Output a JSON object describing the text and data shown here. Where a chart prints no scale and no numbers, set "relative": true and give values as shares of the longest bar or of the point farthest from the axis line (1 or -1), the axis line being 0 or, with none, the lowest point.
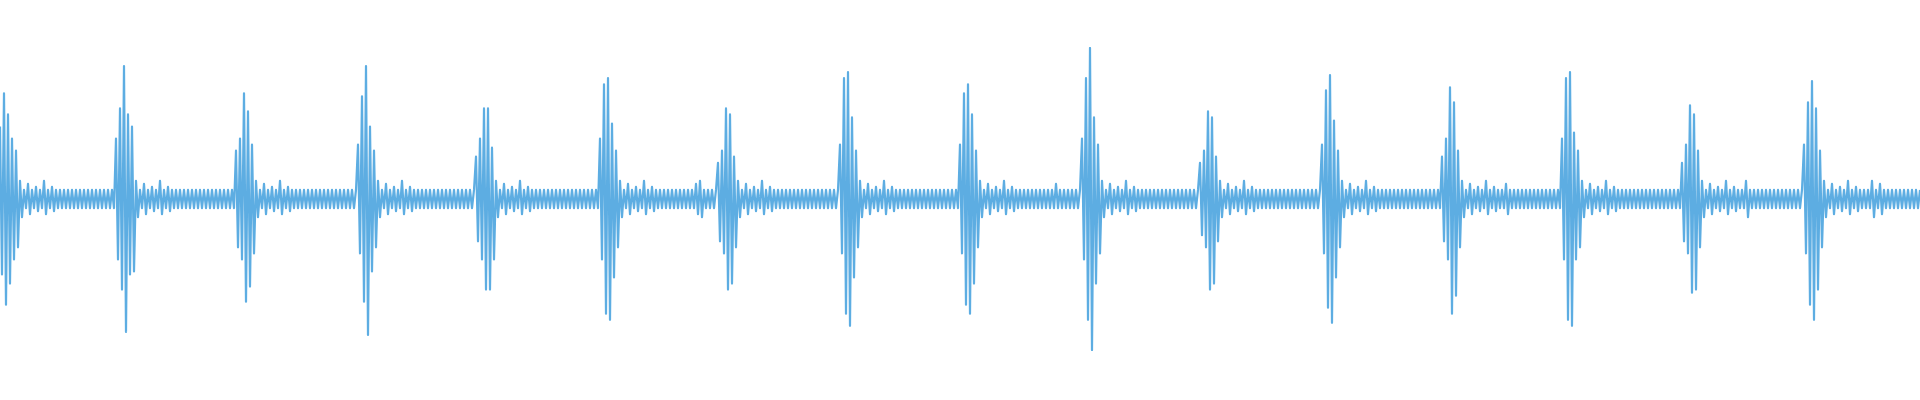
{
  "chart_data": {
    "type": "line",
    "relative": true,
    "color": "#5dade2",
    "categories": [
      null,
      null,
      null,
      null,
      null,
      null,
      null,
      null,
      null,
      null,
      null,
      null,
      null,
      null,
      null,
      null,
      null,
      null,
      null,
      null,
      null,
      null,
      null,
      null,
      null,
      null,
      null,
      null,
      null,
      null,
      null,
      null,
      null,
      null,
      null,
      null,
      null,
      null,
      null,
      null,
      null,
      null,
      null,
      null,
      null,
      null,
      null,
      null,
      null,
      null,
      null,
      null,
      null,
      null,
      null,
      null,
      null,
      null,
      null,
      null,
      null,
      null,
      null,
      null,
      null,
      null,
      null,
      null,
      null,
      null,
      null,
      null,
      null,
      null,
      null,
      null,
      null,
      null,
      null,
      null,
      null,
      null,
      null,
      null,
      null,
      null,
      null,
      null,
      null,
      null,
      null,
      null,
      null,
      null,
      null,
      null,
      null,
      null,
      null,
      null,
      null,
      null,
      null,
      null,
      null,
      null,
      null,
      null,
      null,
      null,
      null,
      null,
      null,
      null,
      null,
      null,
      null,
      null,
      null,
      null,
      null,
      null,
      null,
      null,
      null,
      null,
      null,
      null,
      null,
      null,
      null,
      null,
      null,
      null,
      null,
      null,
      null,
      null,
      null,
      null,
      null,
      null,
      null,
      null,
      null,
      null,
      null,
      null,
      null,
      null,
      null,
      null,
      null,
      null,
      null,
      null,
      null,
      null,
      null,
      null,
      null,
      null,
      null,
      null,
      null,
      null,
      null,
      null,
      null,
      null,
      null,
      null,
      null,
      null,
      null,
      null,
      null,
      null,
      null,
      null,
      null,
      null,
      null,
      null,
      null,
      null,
      null,
      null,
      null,
      null,
      null,
      null,
      null,
      null,
      null,
      null,
      null,
      null,
      null,
      null,
      null,
      null,
      null,
      null,
      null,
      null,
      null,
      null,
      null,
      null,
      null,
      null,
      null,
      null,
      null,
      null,
      null,
      null,
      null,
      null,
      null,
      null,
      null,
      null,
      null,
      null,
      null,
      null,
      null,
      null,
      null,
      null,
      null,
      null,
      null,
      null,
      null,
      null,
      null,
      null,
      null,
      null,
      null,
      null,
      null,
      null,
      null,
      null,
      null,
      null,
      null,
      null,
      null,
      null,
      null,
      null,
      null,
      null,
      null,
      null,
      null,
      null,
      null,
      null,
      null,
      null,
      null,
      null,
      null,
      null,
      null,
      null,
      null,
      null,
      null,
      null,
      null,
      null,
      null,
      null,
      null,
      null,
      null,
      null,
      null,
      null,
      null,
      null,
      null,
      null,
      null,
      null,
      null,
      null,
      null,
      null,
      null,
      null,
      null,
      null,
      null,
      null,
      null,
      null,
      null,
      null,
      null,
      null,
      null,
      null,
      null,
      null,
      null,
      null,
      null,
      null,
      null,
      null,
      null,
      null,
      null,
      null,
      null,
      null,
      null,
      null,
      null,
      null,
      null,
      null,
      null,
      null,
      null,
      null,
      null,
      null,
      null,
      null,
      null,
      null,
      null,
      null,
      null,
      null,
      null,
      null,
      null,
      null,
      null,
      null,
      null,
      null,
      null,
      null,
      null,
      null,
      null,
      null,
      null,
      null,
      null,
      null,
      null,
      null,
      null,
      null,
      null,
      null,
      null,
      null,
      null,
      null,
      null,
      null,
      null,
      null,
      null,
      null,
      null,
      null,
      null,
      null,
      null,
      null,
      null,
      null,
      null,
      null,
      null,
      null,
      null,
      null,
      null,
      null,
      null,
      null,
      null,
      null,
      null,
      null,
      null,
      null,
      null,
      null,
      null,
      null,
      null,
      null,
      null,
      null,
      null,
      null,
      null,
      null,
      null,
      null,
      null,
      null,
      null,
      null,
      null,
      null,
      null,
      null,
      null,
      null,
      null,
      null,
      null,
      null,
      null,
      null,
      null,
      null,
      null,
      null,
      null,
      null,
      null,
      null,
      null,
      null,
      null,
      null,
      null,
      null,
      null,
      null,
      null,
      null,
      null,
      null,
      null,
      null,
      null,
      null,
      null,
      null,
      null,
      null,
      null,
      null,
      null,
      null,
      null,
      null,
      null,
      null,
      null,
      null,
      null,
      null,
      null,
      null,
      null,
      null,
      null,
      null,
      null,
      null,
      null,
      null,
      null,
      null,
      null,
      null,
      null,
      null,
      null,
      null,
      null,
      null,
      null,
      null,
      null,
      null,
      null,
      null,
      null,
      null,
      null,
      null,
      null,
      null,
      null,
      null,
      null,
      null,
      null,
      null,
      null,
      null,
      null,
      null,
      null,
      null,
      null,
      null,
      null,
      null,
      null,
      null,
      null,
      null,
      null,
      null,
      null,
      null,
      null,
      null,
      null,
      null,
      null,
      null,
      null,
      null,
      null,
      null,
      null,
      null,
      null,
      null,
      null,
      null,
      null,
      null,
      null,
      null,
      null,
      null,
      null,
      null,
      null,
      null,
      null,
      null,
      null,
      null,
      null,
      null,
      null,
      null,
      null,
      null,
      null,
      null,
      null,
      null,
      null,
      null,
      null,
      null,
      null,
      null,
      null,
      null,
      null,
      null,
      null,
      null,
      null,
      null,
      null,
      null,
      null,
      null,
      null,
      null,
      null,
      null,
      null,
      null,
      null,
      null,
      null,
      null,
      null,
      null,
      null,
      null,
      null,
      null,
      null,
      null,
      null,
      null,
      null,
      null,
      null,
      null,
      null,
      null,
      null,
      null,
      null,
      null,
      null,
      null,
      null,
      null,
      null,
      null,
      null,
      null,
      null,
      null,
      null,
      null,
      null,
      null,
      null,
      null,
      null,
      null,
      null,
      null,
      null,
      null,
      null,
      null,
      null,
      null,
      null,
      null,
      null,
      null,
      null,
      null,
      null,
      null,
      null,
      null,
      null,
      null,
      null,
      null,
      null,
      null,
      null,
      null,
      null,
      null,
      null,
      null,
      null,
      null,
      null,
      null,
      null,
      null,
      null,
      null,
      null,
      null,
      null,
      null,
      null,
      null,
      null,
      null,
      null,
      null,
      null,
      null,
      null,
      null,
      null,
      null,
      null,
      null,
      null,
      null,
      null,
      null,
      null,
      null,
      null,
      null,
      null,
      null,
      null,
      null,
      null,
      null,
      null,
      null,
      null,
      null,
      null,
      null,
      null,
      null,
      null,
      null,
      null,
      null,
      null,
      null,
      null,
      null,
      null,
      null,
      null,
      null,
      null,
      null,
      null,
      null,
      null,
      null,
      null,
      null,
      null,
      null,
      null,
      null,
      null,
      null,
      null,
      null,
      null,
      null,
      null,
      null,
      null,
      null,
      null,
      null,
      null,
      null,
      null,
      null,
      null,
      null,
      null,
      null,
      null,
      null,
      null,
      null,
      null,
      null,
      null,
      null,
      null,
      null,
      null,
      null,
      null,
      null,
      null,
      null,
      null,
      null,
      null,
      null,
      null,
      null,
      null,
      null,
      null,
      null,
      null,
      null,
      null,
      null,
      null,
      null,
      null,
      null,
      null,
      null,
      null,
      null,
      null,
      null,
      null,
      null,
      null,
      null,
      null,
      null,
      null,
      null,
      null,
      null,
      null,
      null,
      null,
      null,
      null,
      null,
      null,
      null,
      null,
      null,
      null,
      null,
      null,
      null,
      null,
      null,
      null,
      null,
      null,
      null,
      null,
      null,
      null,
      null,
      null,
      null,
      null,
      null,
      null,
      null,
      null,
      null,
      null,
      null,
      null,
      null,
      null,
      null,
      null,
      null,
      null,
      null,
      null,
      null,
      null,
      null,
      null,
      null,
      null,
      null,
      null,
      null,
      null,
      null,
      null,
      null,
      null,
      null,
      null,
      null,
      null,
      null,
      null,
      null,
      null,
      null,
      null,
      null,
      null,
      null,
      null,
      null,
      null,
      null,
      null,
      null,
      null,
      null,
      null,
      null,
      null,
      null,
      null,
      null,
      null,
      null,
      null,
      null,
      null,
      null,
      null,
      null,
      null,
      null,
      null,
      null,
      null,
      null,
      null,
      null,
      null,
      null,
      null,
      null,
      null,
      null,
      null,
      null,
      null,
      null,
      null,
      null,
      null,
      null,
      null,
      null,
      null,
      null,
      null,
      null,
      null,
      null,
      null,
      null,
      null,
      null,
      null,
      null,
      null,
      null,
      null,
      null,
      null,
      null,
      null,
      null,
      null,
      null,
      null,
      null,
      null,
      null,
      null,
      null,
      null,
      null,
      null,
      null,
      null,
      null,
      null,
      null,
      null,
      null,
      null
    ],
    "values": [
      0.74,
      0.25,
      0.85,
      0.15,
      0.78,
      0.22,
      0.7,
      0.3,
      0.66,
      0.34,
      0.56,
      0.44,
      0.53,
      0.47,
      0.55,
      0.45,
      0.53,
      0.47,
      0.54,
      0.46,
      0.53,
      0.47,
      0.56,
      0.45,
      0.53,
      0.47,
      0.54,
      0.46,
      0.53,
      0.47,
      0.53,
      0.47,
      0.53,
      0.47,
      0.53,
      0.47,
      0.53,
      0.47,
      0.53,
      0.47,
      0.53,
      0.47,
      0.53,
      0.47,
      0.53,
      0.47,
      0.53,
      0.47,
      0.53,
      0.47,
      0.53,
      0.47,
      0.53,
      0.47,
      0.53,
      0.47,
      0.53,
      0.47,
      0.7,
      0.3,
      0.8,
      0.2,
      0.94,
      0.06,
      0.78,
      0.25,
      0.74,
      0.26,
      0.56,
      0.44,
      0.53,
      0.47,
      0.55,
      0.45,
      0.53,
      0.47,
      0.54,
      0.46,
      0.53,
      0.47,
      0.56,
      0.45,
      0.53,
      0.47,
      0.54,
      0.46,
      0.53,
      0.47,
      0.53,
      0.47,
      0.53,
      0.47,
      0.53,
      0.47,
      0.53,
      0.47,
      0.53,
      0.47,
      0.53,
      0.47,
      0.53,
      0.47,
      0.53,
      0.47,
      0.53,
      0.47,
      0.53,
      0.47,
      0.53,
      0.47,
      0.53,
      0.47,
      0.53,
      0.47,
      0.53,
      0.47,
      0.53,
      0.47,
      0.66,
      0.34,
      0.7,
      0.3,
      0.85,
      0.16,
      0.79,
      0.21,
      0.68,
      0.32,
      0.56,
      0.44,
      0.53,
      0.47,
      0.55,
      0.45,
      0.53,
      0.47,
      0.54,
      0.46,
      0.53,
      0.47,
      0.56,
      0.45,
      0.53,
      0.47,
      0.54,
      0.46,
      0.53,
      0.47,
      0.53,
      0.47,
      0.53,
      0.47,
      0.53,
      0.47,
      0.53,
      0.47,
      0.53,
      0.47,
      0.53,
      0.47,
      0.53,
      0.47,
      0.53,
      0.47,
      0.53,
      0.47,
      0.53,
      0.47,
      0.53,
      0.47,
      0.53,
      0.47,
      0.53,
      0.47,
      0.53,
      0.47,
      0.53,
      0.47,
      0.53,
      0.68,
      0.32,
      0.84,
      0.16,
      0.94,
      0.05,
      0.74,
      0.26,
      0.66,
      0.34,
      0.56,
      0.44,
      0.53,
      0.47,
      0.55,
      0.45,
      0.53,
      0.47,
      0.54,
      0.46,
      0.53,
      0.47,
      0.56,
      0.45,
      0.53,
      0.47,
      0.54,
      0.46,
      0.53,
      0.47,
      0.53,
      0.47,
      0.53,
      0.47,
      0.53,
      0.47,
      0.53,
      0.47,
      0.53,
      0.47,
      0.53,
      0.47,
      0.53,
      0.47,
      0.53,
      0.47,
      0.53,
      0.47,
      0.53,
      0.47,
      0.53,
      0.47,
      0.53,
      0.47,
      0.53,
      0.47,
      0.53,
      0.47,
      0.53,
      0.64,
      0.36,
      0.7,
      0.3,
      0.8,
      0.2,
      0.8,
      0.2,
      0.67,
      0.3,
      0.56,
      0.44,
      0.53,
      0.47,
      0.55,
      0.45,
      0.53,
      0.47,
      0.54,
      0.46,
      0.53,
      0.47,
      0.56,
      0.45,
      0.53,
      0.47,
      0.54,
      0.46,
      0.53,
      0.47,
      0.53,
      0.47,
      0.53,
      0.47,
      0.53,
      0.47,
      0.53,
      0.47,
      0.53,
      0.47,
      0.53,
      0.47,
      0.53,
      0.47,
      0.53,
      0.47,
      0.53,
      0.47,
      0.53,
      0.47,
      0.53,
      0.47,
      0.53,
      0.47,
      0.53,
      0.47,
      0.53,
      0.47,
      0.53,
      0.47,
      0.53,
      0.47,
      0.7,
      0.3,
      0.88,
      0.12,
      0.9,
      0.1,
      0.75,
      0.24,
      0.66,
      0.34,
      0.56,
      0.44,
      0.53,
      0.47,
      0.55,
      0.45,
      0.53,
      0.47,
      0.54,
      0.46,
      0.53,
      0.47,
      0.56,
      0.45,
      0.53,
      0.47,
      0.54,
      0.46,
      0.53,
      0.47,
      0.53,
      0.47,
      0.53,
      0.47,
      0.53,
      0.47,
      0.53,
      0.47,
      0.53,
      0.47,
      0.53,
      0.47,
      0.53,
      0.47,
      0.53,
      0.47,
      0.53,
      0.47,
      0.55,
      0.45,
      0.56,
      0.44,
      0.53,
      0.47,
      0.53,
      0.47,
      0.53,
      0.47,
      0.53,
      0.62,
      0.36,
      0.66,
      0.32,
      0.8,
      0.2,
      0.78,
      0.22,
      0.64,
      0.34,
      0.56,
      0.44,
      0.53,
      0.47,
      0.55,
      0.45,
      0.53,
      0.47,
      0.54,
      0.46,
      0.53,
      0.47,
      0.56,
      0.45,
      0.53,
      0.47,
      0.54,
      0.46,
      0.53,
      0.47,
      0.53,
      0.47,
      0.53,
      0.47,
      0.53,
      0.47,
      0.53,
      0.47,
      0.53,
      0.47,
      0.53,
      0.47,
      0.53,
      0.47,
      0.53,
      0.47,
      0.53,
      0.47,
      0.53,
      0.47,
      0.53,
      0.47,
      0.53,
      0.47,
      0.53,
      0.47,
      0.53,
      0.47,
      0.53,
      0.47,
      0.53,
      0.68,
      0.32,
      0.9,
      0.12,
      0.92,
      0.08,
      0.77,
      0.24,
      0.66,
      0.34,
      0.56,
      0.44,
      0.53,
      0.47,
      0.55,
      0.45,
      0.53,
      0.47,
      0.54,
      0.46,
      0.53,
      0.47,
      0.56,
      0.45,
      0.53,
      0.47,
      0.54,
      0.46,
      0.53,
      0.47,
      0.53,
      0.47,
      0.53,
      0.47,
      0.53,
      0.47,
      0.53,
      0.47,
      0.53,
      0.47,
      0.53,
      0.47,
      0.53,
      0.47,
      0.53,
      0.47,
      0.53,
      0.47,
      0.53,
      0.47,
      0.53,
      0.47,
      0.53,
      0.47,
      0.53,
      0.47,
      0.53,
      0.47,
      0.53,
      0.47,
      0.68,
      0.32,
      0.85,
      0.15,
      0.88,
      0.12,
      0.78,
      0.22,
      0.66,
      0.34,
      0.56,
      0.44,
      0.53,
      0.47,
      0.55,
      0.45,
      0.53,
      0.47,
      0.54,
      0.46,
      0.53,
      0.47,
      0.56,
      0.45,
      0.53,
      0.47,
      0.54,
      0.46,
      0.53,
      0.47,
      0.53,
      0.47,
      0.53,
      0.47,
      0.53,
      0.47,
      0.53,
      0.47,
      0.53,
      0.47,
      0.53,
      0.47,
      0.53,
      0.47,
      0.53,
      0.47,
      0.53,
      0.47,
      0.55,
      0.47,
      0.53,
      0.47,
      0.53,
      0.47,
      0.53,
      0.47,
      0.53,
      0.47,
      0.53,
      0.47,
      0.53,
      0.7,
      0.3,
      0.9,
      0.1,
      1.0,
      0.0,
      0.77,
      0.22,
      0.68,
      0.32,
      0.56,
      0.44,
      0.53,
      0.47,
      0.55,
      0.45,
      0.53,
      0.47,
      0.54,
      0.46,
      0.53,
      0.47,
      0.56,
      0.45,
      0.53,
      0.47,
      0.54,
      0.46,
      0.53,
      0.47,
      0.53,
      0.47,
      0.53,
      0.47,
      0.53,
      0.47,
      0.53,
      0.47,
      0.53,
      0.47,
      0.53,
      0.47,
      0.53,
      0.47,
      0.53,
      0.47,
      0.53,
      0.47,
      0.53,
      0.47,
      0.53,
      0.47,
      0.53,
      0.47,
      0.53,
      0.47,
      0.53,
      0.47,
      0.53,
      0.62,
      0.38,
      0.66,
      0.34,
      0.79,
      0.2,
      0.77,
      0.22,
      0.64,
      0.36,
      0.56,
      0.44,
      0.53,
      0.47,
      0.55,
      0.45,
      0.53,
      0.47,
      0.54,
      0.46,
      0.53,
      0.47,
      0.56,
      0.45,
      0.53,
      0.47,
      0.54,
      0.46,
      0.53,
      0.47,
      0.53,
      0.47,
      0.53,
      0.47,
      0.53,
      0.47,
      0.53,
      0.47,
      0.53,
      0.47,
      0.53,
      0.47,
      0.53,
      0.47,
      0.53,
      0.47,
      0.53,
      0.47,
      0.53,
      0.47,
      0.53,
      0.47,
      0.53,
      0.47,
      0.53,
      0.47,
      0.53,
      0.47,
      0.53,
      0.47,
      0.53,
      0.68,
      0.32,
      0.86,
      0.14,
      0.91,
      0.09,
      0.76,
      0.24,
      0.66,
      0.34,
      0.56,
      0.44,
      0.53,
      0.47,
      0.55,
      0.45,
      0.53,
      0.47,
      0.54,
      0.46,
      0.53,
      0.47,
      0.56,
      0.45,
      0.53,
      0.47,
      0.54,
      0.46,
      0.53,
      0.47,
      0.53,
      0.47,
      0.53,
      0.47,
      0.53,
      0.47,
      0.53,
      0.47,
      0.53,
      0.47,
      0.53,
      0.47,
      0.53,
      0.47,
      0.53,
      0.47,
      0.53,
      0.47,
      0.53,
      0.47,
      0.53,
      0.47,
      0.53,
      0.47,
      0.53,
      0.47,
      0.53,
      0.47,
      0.53,
      0.47,
      0.64,
      0.36,
      0.7,
      0.3,
      0.87,
      0.12,
      0.82,
      0.18,
      0.66,
      0.34,
      0.56,
      0.44,
      0.53,
      0.47,
      0.55,
      0.45,
      0.53,
      0.47,
      0.54,
      0.46,
      0.53,
      0.47,
      0.56,
      0.45,
      0.53,
      0.47,
      0.54,
      0.46,
      0.53,
      0.47,
      0.53,
      0.47,
      0.55,
      0.45,
      0.53,
      0.47,
      0.53,
      0.47,
      0.53,
      0.47,
      0.53,
      0.47,
      0.53,
      0.47,
      0.53,
      0.47,
      0.53,
      0.47,
      0.53,
      0.47,
      0.53,
      0.47,
      0.53,
      0.47,
      0.53,
      0.47,
      0.53,
      0.47,
      0.53,
      0.47,
      0.7,
      0.3,
      0.9,
      0.1,
      0.92,
      0.08,
      0.72,
      0.3,
      0.66,
      0.34,
      0.56,
      0.44,
      0.53,
      0.47,
      0.55,
      0.45,
      0.53,
      0.47,
      0.54,
      0.46,
      0.53,
      0.47,
      0.56,
      0.45,
      0.53,
      0.47,
      0.54,
      0.46,
      0.53,
      0.47,
      0.53,
      0.47,
      0.53,
      0.47,
      0.53,
      0.47,
      0.53,
      0.47,
      0.53,
      0.47,
      0.53,
      0.47,
      0.53,
      0.47,
      0.53,
      0.47,
      0.53,
      0.47,
      0.53,
      0.47,
      0.53,
      0.47,
      0.53,
      0.47,
      0.53,
      0.47,
      0.53,
      0.47,
      0.53,
      0.47,
      0.62,
      0.36,
      0.68,
      0.32,
      0.81,
      0.19,
      0.78,
      0.2,
      0.66,
      0.34,
      0.56,
      0.44,
      0.53,
      0.47,
      0.55,
      0.45,
      0.53,
      0.47,
      0.54,
      0.46,
      0.53,
      0.47,
      0.56,
      0.45,
      0.53,
      0.47,
      0.54,
      0.46,
      0.53,
      0.47,
      0.53,
      0.47,
      0.56,
      0.44,
      0.53,
      0.47,
      0.53,
      0.47,
      0.53,
      0.47,
      0.53,
      0.47,
      0.53,
      0.47,
      0.53,
      0.47,
      0.53,
      0.47,
      0.53,
      0.47,
      0.53,
      0.47,
      0.53,
      0.47,
      0.53,
      0.47,
      0.53,
      0.47,
      0.53,
      0.47,
      0.53,
      0.68,
      0.32,
      0.82,
      0.15,
      0.89,
      0.1,
      0.8,
      0.2,
      0.66,
      0.34,
      0.56,
      0.44,
      0.53,
      0.47,
      0.55,
      0.45,
      0.53,
      0.47,
      0.54,
      0.46,
      0.53,
      0.47,
      0.56,
      0.45,
      0.53,
      0.47,
      0.54,
      0.46,
      0.53,
      0.47,
      0.53,
      0.47,
      0.53,
      0.47,
      0.56,
      0.44,
      0.53,
      0.47,
      0.55,
      0.45,
      0.53,
      0.47,
      0.53,
      0.47,
      0.53,
      0.47,
      0.53,
      0.47,
      0.53,
      0.47,
      0.53,
      0.47,
      0.53,
      0.47,
      0.53,
      0.47,
      0.53,
      0.47,
      0.53
    ]
  }
}
